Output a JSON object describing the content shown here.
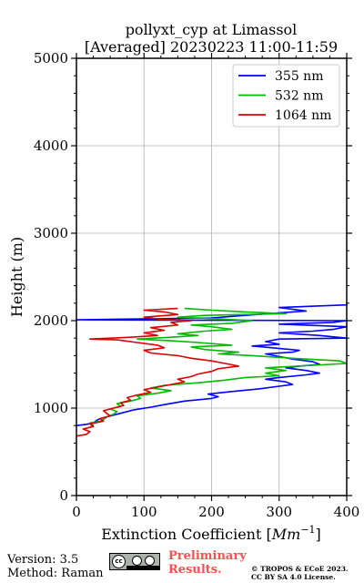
{
  "chart_data": {
    "type": "line",
    "title_line1": "pollyxt_cyp at Limassol",
    "title_line2": "[Averaged] 20230223 11:00-11:59",
    "xlabel": "Extinction Coefficient [",
    "xlabel_unit": "Mm",
    "xlabel_exp": "−1",
    "xlabel_close": "]",
    "ylabel": "Height (m)",
    "xlim": [
      0,
      400
    ],
    "ylim": [
      0,
      5000
    ],
    "xticks": [
      0,
      100,
      200,
      300,
      400
    ],
    "yticks": [
      0,
      1000,
      2000,
      3000,
      4000,
      5000
    ],
    "grid": true,
    "legend_position": "top-right",
    "series": [
      {
        "name": "355 nm",
        "color": "#0000ff",
        "points": [
          [
            0,
            800
          ],
          [
            15,
            815
          ],
          [
            25,
            830
          ],
          [
            30,
            860
          ],
          [
            35,
            880
          ],
          [
            45,
            900
          ],
          [
            55,
            920
          ],
          [
            70,
            950
          ],
          [
            85,
            980
          ],
          [
            110,
            1010
          ],
          [
            130,
            1040
          ],
          [
            160,
            1080
          ],
          [
            200,
            1110
          ],
          [
            210,
            1130
          ],
          [
            195,
            1160
          ],
          [
            230,
            1190
          ],
          [
            270,
            1220
          ],
          [
            300,
            1250
          ],
          [
            320,
            1270
          ],
          [
            310,
            1300
          ],
          [
            280,
            1330
          ],
          [
            300,
            1350
          ],
          [
            340,
            1380
          ],
          [
            360,
            1400
          ],
          [
            340,
            1430
          ],
          [
            310,
            1460
          ],
          [
            330,
            1480
          ],
          [
            360,
            1500
          ],
          [
            350,
            1530
          ],
          [
            320,
            1560
          ],
          [
            300,
            1590
          ],
          [
            280,
            1620
          ],
          [
            320,
            1640
          ],
          [
            330,
            1660
          ],
          [
            290,
            1690
          ],
          [
            260,
            1710
          ],
          [
            300,
            1730
          ],
          [
            280,
            1760
          ],
          [
            300,
            1790
          ],
          [
            400,
            1800
          ],
          [
            360,
            1830
          ],
          [
            300,
            1860
          ],
          [
            350,
            1880
          ],
          [
            380,
            1900
          ],
          [
            410,
            1930
          ],
          [
            300,
            1960
          ],
          [
            380,
            1980
          ],
          [
            400,
            2000
          ],
          [
            0,
            2010
          ],
          [
            200,
            2030
          ],
          [
            250,
            2060
          ],
          [
            300,
            2090
          ],
          [
            340,
            2110
          ],
          [
            300,
            2150
          ],
          [
            400,
            2180
          ],
          [
            410,
            2200
          ]
        ]
      },
      {
        "name": "532 nm",
        "color": "#00bb00",
        "points": [
          [
            10,
            760
          ],
          [
            20,
            780
          ],
          [
            25,
            800
          ],
          [
            20,
            830
          ],
          [
            35,
            850
          ],
          [
            40,
            870
          ],
          [
            45,
            900
          ],
          [
            55,
            930
          ],
          [
            60,
            960
          ],
          [
            50,
            990
          ],
          [
            65,
            1020
          ],
          [
            60,
            1050
          ],
          [
            80,
            1080
          ],
          [
            95,
            1110
          ],
          [
            90,
            1140
          ],
          [
            120,
            1170
          ],
          [
            140,
            1200
          ],
          [
            110,
            1230
          ],
          [
            130,
            1260
          ],
          [
            180,
            1290
          ],
          [
            220,
            1320
          ],
          [
            250,
            1350
          ],
          [
            300,
            1370
          ],
          [
            280,
            1400
          ],
          [
            310,
            1430
          ],
          [
            280,
            1460
          ],
          [
            350,
            1490
          ],
          [
            400,
            1510
          ],
          [
            390,
            1540
          ],
          [
            320,
            1570
          ],
          [
            260,
            1600
          ],
          [
            210,
            1620
          ],
          [
            240,
            1640
          ],
          [
            190,
            1670
          ],
          [
            170,
            1700
          ],
          [
            230,
            1720
          ],
          [
            180,
            1750
          ],
          [
            140,
            1770
          ],
          [
            90,
            1790
          ],
          [
            140,
            1810
          ],
          [
            180,
            1830
          ],
          [
            150,
            1850
          ],
          [
            190,
            1880
          ],
          [
            230,
            1900
          ],
          [
            200,
            1930
          ],
          [
            170,
            1950
          ],
          [
            230,
            1970
          ],
          [
            260,
            2000
          ],
          [
            210,
            2020
          ],
          [
            150,
            2040
          ],
          [
            190,
            2060
          ],
          [
            310,
            2080
          ],
          [
            250,
            2100
          ],
          [
            200,
            2120
          ],
          [
            160,
            2140
          ]
        ]
      },
      {
        "name": "1064 nm",
        "color": "#dd0000",
        "points": [
          [
            0,
            680
          ],
          [
            15,
            700
          ],
          [
            20,
            730
          ],
          [
            10,
            760
          ],
          [
            25,
            790
          ],
          [
            20,
            820
          ],
          [
            40,
            850
          ],
          [
            35,
            880
          ],
          [
            50,
            910
          ],
          [
            45,
            940
          ],
          [
            40,
            970
          ],
          [
            55,
            1000
          ],
          [
            70,
            1030
          ],
          [
            65,
            1060
          ],
          [
            80,
            1090
          ],
          [
            75,
            1120
          ],
          [
            90,
            1150
          ],
          [
            110,
            1180
          ],
          [
            100,
            1210
          ],
          [
            120,
            1240
          ],
          [
            140,
            1270
          ],
          [
            160,
            1300
          ],
          [
            150,
            1330
          ],
          [
            170,
            1360
          ],
          [
            180,
            1390
          ],
          [
            200,
            1420
          ],
          [
            210,
            1450
          ],
          [
            240,
            1480
          ],
          [
            220,
            1510
          ],
          [
            200,
            1540
          ],
          [
            170,
            1570
          ],
          [
            150,
            1600
          ],
          [
            110,
            1630
          ],
          [
            100,
            1660
          ],
          [
            130,
            1690
          ],
          [
            120,
            1720
          ],
          [
            90,
            1750
          ],
          [
            60,
            1780
          ],
          [
            20,
            1790
          ],
          [
            80,
            1810
          ],
          [
            120,
            1830
          ],
          [
            100,
            1860
          ],
          [
            130,
            1890
          ],
          [
            110,
            1920
          ],
          [
            150,
            1950
          ],
          [
            140,
            1980
          ],
          [
            170,
            2000
          ],
          [
            120,
            2020
          ],
          [
            100,
            2040
          ],
          [
            150,
            2070
          ],
          [
            130,
            2100
          ],
          [
            100,
            2120
          ],
          [
            150,
            2140
          ]
        ]
      }
    ]
  },
  "footer": {
    "version": "Version: 3.5",
    "method": "Method: Raman",
    "preliminary_line1": "Preliminary",
    "preliminary_line2": "Results.",
    "copyright_line1": "© TROPOS & ECoE 2023.",
    "copyright_line2": "CC BY SA 4.0 License.",
    "cc_label": "cc"
  }
}
